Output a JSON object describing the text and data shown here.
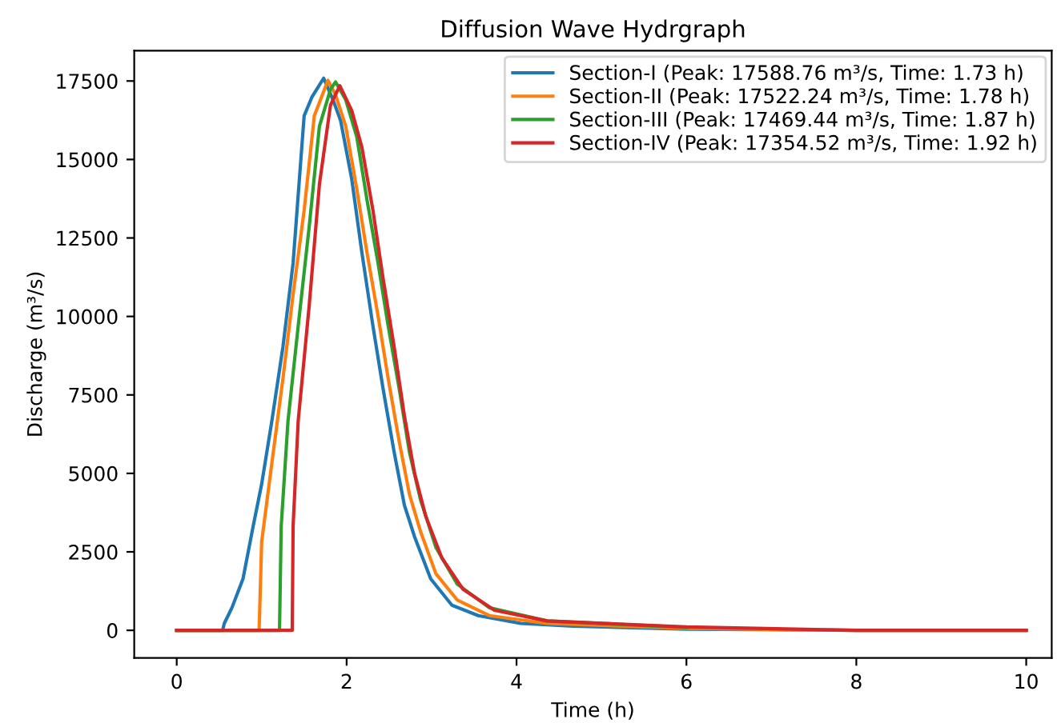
{
  "chart_data": {
    "type": "line",
    "title": "Diffusion Wave Hydrgraph",
    "xlabel": "Time (h)",
    "ylabel": "Discharge (m³/s)",
    "xlim": [
      -0.5,
      10.3
    ],
    "ylim": [
      -879,
      18468
    ],
    "xticks": [
      0,
      2,
      4,
      6,
      8,
      10
    ],
    "yticks": [
      0,
      2500,
      5000,
      7500,
      10000,
      12500,
      15000,
      17500
    ],
    "grid": false,
    "legend": "top right",
    "marker": "none",
    "line_style": "solid",
    "series": [
      {
        "name": "Section-I (Peak: 17588.76 m³/s, Time: 1.73 h)",
        "color": "#1f77b4",
        "x": [
          0,
          0.54,
          0.56,
          0.65,
          0.78,
          0.9,
          1.0,
          1.12,
          1.25,
          1.37,
          1.5,
          1.59,
          1.73,
          1.84,
          1.93,
          2.06,
          2.18,
          2.31,
          2.43,
          2.56,
          2.68,
          2.8,
          2.99,
          3.24,
          3.55,
          4.05,
          4.67,
          6,
          8,
          10
        ],
        "values": [
          0,
          0,
          220,
          720,
          1640,
          3320,
          4660,
          6670,
          9020,
          11700,
          16390,
          16980,
          17590,
          16900,
          16230,
          14380,
          12030,
          9690,
          7680,
          5670,
          3990,
          2980,
          1640,
          800,
          470,
          220,
          130,
          40,
          0,
          0
        ]
      },
      {
        "name": "Section-II (Peak: 17522.24 m³/s, Time: 1.78 h)",
        "color": "#ff7f0e",
        "x": [
          0,
          0.97,
          1.0,
          1.12,
          1.25,
          1.37,
          1.5,
          1.62,
          1.78,
          1.87,
          1.99,
          2.12,
          2.24,
          2.37,
          2.49,
          2.62,
          2.74,
          2.87,
          3.05,
          3.3,
          3.68,
          4.36,
          6,
          8,
          10
        ],
        "values": [
          0,
          0,
          2820,
          5330,
          8010,
          10700,
          13380,
          16390,
          17520,
          17060,
          16060,
          14050,
          12030,
          10020,
          8010,
          6000,
          4330,
          3150,
          1810,
          970,
          470,
          220,
          60,
          0,
          0
        ]
      },
      {
        "name": "Section-III (Peak: 17469.44 m³/s, Time: 1.87 h)",
        "color": "#2ca02c",
        "x": [
          0,
          1.21,
          1.23,
          1.31,
          1.43,
          1.56,
          1.68,
          1.81,
          1.87,
          1.99,
          2.12,
          2.24,
          2.37,
          2.49,
          2.62,
          2.74,
          2.87,
          3.05,
          3.3,
          3.68,
          4.36,
          6
        ],
        "values": [
          0,
          0,
          3320,
          6670,
          9690,
          12870,
          16060,
          17230,
          17470,
          16900,
          15720,
          13710,
          11700,
          9690,
          7680,
          5670,
          4160,
          2650,
          1480,
          720,
          300,
          90
        ]
      },
      {
        "name": "Section-IV (Peak: 17354.52 m³/s, Time: 1.92 h)",
        "color": "#d62728",
        "x": [
          0,
          1.36,
          1.37,
          1.43,
          1.56,
          1.68,
          1.81,
          1.92,
          2.06,
          2.18,
          2.31,
          2.43,
          2.56,
          2.68,
          2.8,
          2.93,
          3.12,
          3.37,
          3.74,
          4.36,
          6,
          8,
          10
        ],
        "values": [
          0,
          0,
          3320,
          6670,
          10360,
          14210,
          16730,
          17350,
          16560,
          15390,
          13380,
          11200,
          9020,
          6840,
          5000,
          3650,
          2310,
          1310,
          640,
          300,
          110,
          0,
          0
        ]
      }
    ]
  }
}
